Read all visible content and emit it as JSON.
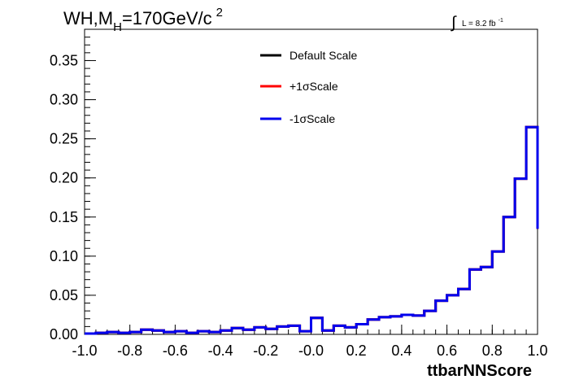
{
  "chart_data": {
    "type": "line",
    "title_main": "WH,M",
    "title_sub": "H",
    "title_rest": "=170GeV/c",
    "title_sup": "2",
    "lumi_text": "L = 8.2 fb",
    "lumi_sup": "-1",
    "xlabel": "ttbarNNScore",
    "ylabel": "",
    "xlim": [
      -1.0,
      1.0
    ],
    "ylim": [
      0,
      0.39
    ],
    "x_ticks": [
      "-1.0",
      "-0.8",
      "-0.6",
      "-0.4",
      "-0.2",
      "-0.0",
      "0.2",
      "0.4",
      "0.6",
      "0.8",
      "1.0"
    ],
    "y_ticks": [
      "0.00",
      "0.05",
      "0.10",
      "0.15",
      "0.20",
      "0.25",
      "0.30",
      "0.35"
    ],
    "legend_position": "top-center",
    "bin_edges_start": -1.0,
    "bin_width": 0.05,
    "series": [
      {
        "name": "Default Scale",
        "color": "#000000",
        "values": [
          0.001,
          0.002,
          0.003,
          0.002,
          0.003,
          0.006,
          0.005,
          0.003,
          0.004,
          0.002,
          0.004,
          0.003,
          0.005,
          0.008,
          0.006,
          0.009,
          0.007,
          0.01,
          0.011,
          0.004,
          0.021,
          0.005,
          0.011,
          0.009,
          0.013,
          0.019,
          0.022,
          0.023,
          0.025,
          0.024,
          0.03,
          0.043,
          0.05,
          0.058,
          0.083,
          0.086,
          0.106,
          0.15,
          0.199,
          0.265,
          0.135
        ]
      },
      {
        "name": "+1σScale",
        "color": "#ff0000",
        "values": [
          0.001,
          0.002,
          0.003,
          0.002,
          0.003,
          0.006,
          0.005,
          0.003,
          0.004,
          0.002,
          0.004,
          0.003,
          0.005,
          0.008,
          0.006,
          0.009,
          0.007,
          0.01,
          0.011,
          0.004,
          0.021,
          0.005,
          0.011,
          0.009,
          0.013,
          0.019,
          0.022,
          0.023,
          0.025,
          0.024,
          0.03,
          0.043,
          0.05,
          0.058,
          0.083,
          0.086,
          0.106,
          0.15,
          0.199,
          0.265,
          0.135
        ]
      },
      {
        "name": "-1σScale",
        "color": "#0000ee",
        "values": [
          0.001,
          0.002,
          0.003,
          0.002,
          0.003,
          0.006,
          0.005,
          0.003,
          0.004,
          0.002,
          0.004,
          0.003,
          0.005,
          0.008,
          0.006,
          0.009,
          0.007,
          0.01,
          0.011,
          0.004,
          0.021,
          0.005,
          0.011,
          0.009,
          0.013,
          0.019,
          0.022,
          0.023,
          0.025,
          0.024,
          0.03,
          0.043,
          0.05,
          0.058,
          0.083,
          0.086,
          0.106,
          0.15,
          0.199,
          0.265,
          0.135
        ]
      }
    ]
  }
}
